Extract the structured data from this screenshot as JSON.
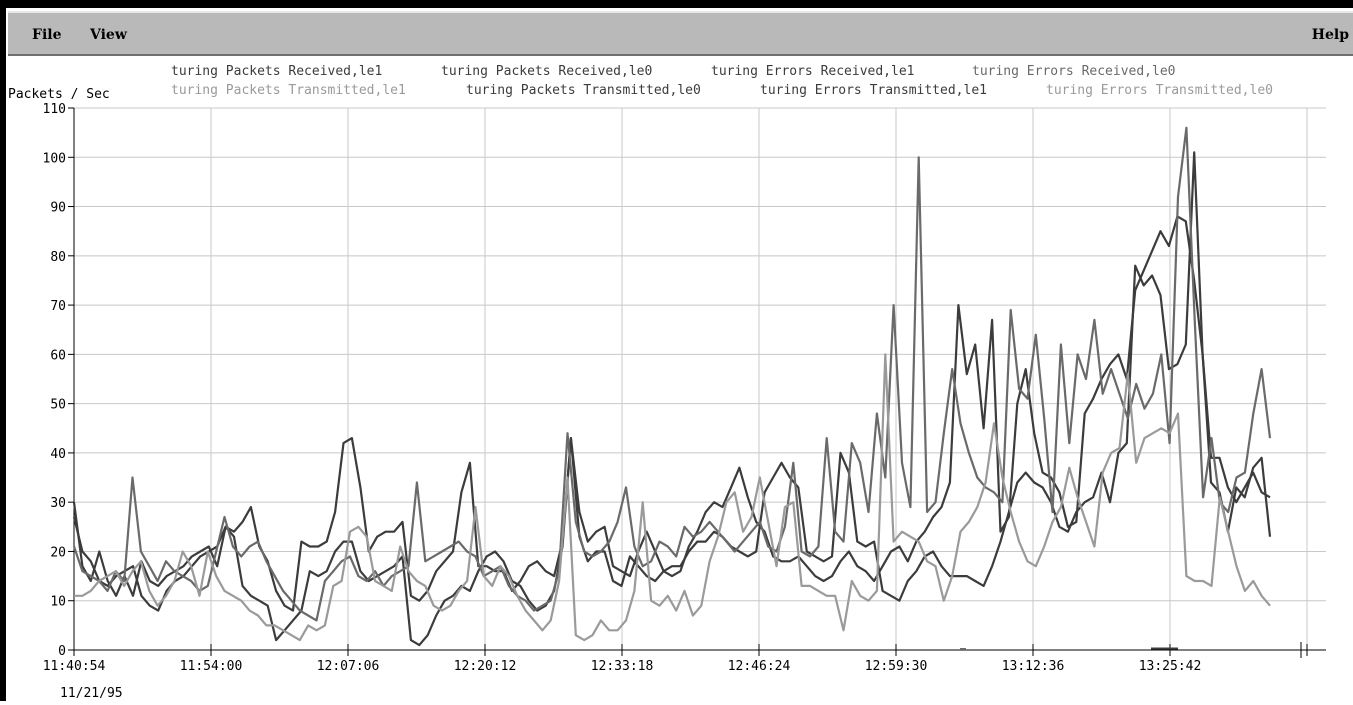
{
  "menu": {
    "file": "File",
    "view": "View",
    "help": "Help"
  },
  "chart_data": {
    "type": "line",
    "ylabel": "Packets / Sec",
    "ylim": [
      0,
      110
    ],
    "yticks": [
      0,
      10,
      20,
      30,
      40,
      50,
      60,
      70,
      80,
      90,
      100,
      110
    ],
    "xticks": [
      "11:40:54",
      "11:54:00",
      "12:07:06",
      "12:20:12",
      "12:33:18",
      "12:46:24",
      "12:59:30",
      "13:12:36",
      "13:25:42"
    ],
    "date_label": "11/21/95",
    "grid": true,
    "legend_position": "top",
    "colors": {
      "dark": "#3c3c3c",
      "mid": "#6a6a6a",
      "light": "#9a9a9a",
      "lighter": "#b0b0b0"
    },
    "legend": [
      {
        "name": "turing Packets Received,le1",
        "color": "#3c3c3c"
      },
      {
        "name": "turing Packets Received,le0",
        "color": "#3c3c3c"
      },
      {
        "name": "turing Errors Received,le1",
        "color": "#3c3c3c"
      },
      {
        "name": "turing Errors Received,le0",
        "color": "#6a6a6a"
      },
      {
        "name": "turing Packets Transmitted,le1",
        "color": "#9a9a9a"
      },
      {
        "name": "turing Packets Transmitted,le0",
        "color": "#3c3c3c"
      },
      {
        "name": "turing Errors Transmitted,le1",
        "color": "#3c3c3c"
      },
      {
        "name": "turing Errors Transmitted,le0",
        "color": "#9a9a9a"
      }
    ],
    "series": [
      {
        "color": "#3c3c3c",
        "values": [
          30,
          17,
          14,
          20,
          14,
          11,
          15,
          11,
          18,
          14,
          13,
          15,
          16,
          17,
          19,
          20,
          21,
          17,
          25,
          24,
          26,
          29,
          21,
          18,
          12,
          9,
          8,
          22,
          21,
          21,
          22,
          28,
          42,
          43,
          33,
          20,
          23,
          24,
          24,
          26,
          11,
          10,
          12,
          16,
          18,
          20,
          32,
          38,
          17,
          17,
          16,
          16,
          12,
          14,
          17,
          18,
          16,
          15,
          22,
          43,
          28,
          22,
          24,
          25,
          17,
          16,
          15,
          20,
          24,
          20,
          16,
          15,
          16,
          21,
          24,
          28,
          30,
          29,
          33,
          37,
          31,
          26,
          24,
          19,
          18,
          18,
          19,
          17,
          15,
          14,
          15,
          18,
          20,
          17,
          16,
          14,
          17,
          20,
          21,
          18,
          22,
          24,
          27,
          29,
          34,
          70,
          56,
          62,
          45,
          67,
          24,
          27,
          50,
          57,
          44,
          36,
          35,
          32,
          25,
          26,
          48,
          51,
          55,
          58,
          60,
          55,
          73,
          77,
          81,
          85,
          82,
          88,
          87,
          75,
          60,
          34,
          32,
          24,
          33,
          31,
          37,
          39,
          23
        ]
      },
      {
        "color": "#3c3c3c",
        "values": [
          27,
          20,
          18,
          14,
          13,
          15,
          16,
          17,
          11,
          9,
          8,
          12,
          14,
          15,
          17,
          19,
          20,
          21,
          25,
          23,
          13,
          11,
          10,
          9,
          2,
          4,
          6,
          8,
          16,
          15,
          16,
          20,
          22,
          22,
          16,
          14,
          15,
          16,
          17,
          19,
          2,
          1,
          3,
          7,
          10,
          11,
          13,
          12,
          16,
          19,
          20,
          18,
          14,
          13,
          10,
          8,
          9,
          12,
          21,
          43,
          23,
          18,
          20,
          20,
          14,
          13,
          19,
          17,
          15,
          14,
          16,
          17,
          17,
          20,
          22,
          22,
          24,
          23,
          21,
          20,
          19,
          20,
          32,
          35,
          38,
          35,
          33,
          20,
          19,
          18,
          19,
          40,
          36,
          22,
          21,
          22,
          12,
          11,
          10,
          14,
          16,
          19,
          20,
          17,
          15,
          15,
          15,
          14,
          13,
          17,
          22,
          28,
          34,
          36,
          34,
          33,
          30,
          25,
          24,
          28,
          30,
          31,
          36,
          30,
          40,
          42,
          78,
          74,
          76,
          72,
          57,
          58,
          62,
          101,
          60,
          39,
          39,
          33,
          30,
          33,
          36,
          32,
          31
        ]
      },
      {
        "color": "#6a6a6a",
        "values": [
          21,
          16,
          15,
          14,
          12,
          16,
          14,
          35,
          20,
          17,
          14,
          18,
          16,
          15,
          14,
          12,
          13,
          20,
          27,
          21,
          19,
          21,
          22,
          18,
          15,
          12,
          10,
          8,
          7,
          6,
          14,
          16,
          18,
          19,
          15,
          14,
          16,
          13,
          15,
          16,
          17,
          34,
          18,
          19,
          20,
          21,
          22,
          20,
          19,
          15,
          16,
          17,
          13,
          11,
          10,
          8,
          9,
          10,
          16,
          44,
          26,
          20,
          19,
          20,
          22,
          26,
          33,
          21,
          17,
          18,
          22,
          21,
          19,
          25,
          23,
          24,
          26,
          24,
          22,
          20,
          22,
          24,
          26,
          21,
          20,
          25,
          38,
          20,
          19,
          21,
          43,
          24,
          22,
          42,
          38,
          28,
          48,
          35,
          70,
          38,
          29,
          100,
          28,
          30,
          44,
          57,
          46,
          40,
          35,
          33,
          32,
          30,
          69,
          53,
          51,
          64,
          47,
          28,
          62,
          42,
          60,
          55,
          67,
          52,
          57,
          52,
          47,
          54,
          49,
          52,
          60,
          42,
          92,
          106,
          67,
          31,
          43,
          30,
          28,
          35,
          36,
          48,
          57,
          43
        ]
      },
      {
        "color": "#9a9a9a",
        "values": [
          11,
          11,
          12,
          14,
          15,
          16,
          13,
          16,
          18,
          12,
          9,
          11,
          14,
          20,
          17,
          11,
          20,
          15,
          12,
          11,
          10,
          8,
          7,
          5,
          5,
          4,
          3,
          2,
          5,
          4,
          5,
          13,
          14,
          24,
          25,
          23,
          14,
          13,
          12,
          21,
          16,
          14,
          13,
          9,
          8,
          9,
          12,
          14,
          29,
          15,
          13,
          17,
          15,
          11,
          8,
          6,
          4,
          6,
          14,
          35,
          3,
          2,
          3,
          6,
          4,
          4,
          6,
          12,
          30,
          10,
          9,
          11,
          8,
          12,
          7,
          9,
          18,
          23,
          30,
          32,
          24,
          27,
          35,
          26,
          17,
          29,
          30,
          13,
          13,
          12,
          11,
          11,
          4,
          14,
          11,
          10,
          12,
          60,
          22,
          24,
          23,
          22,
          18,
          17,
          10,
          15,
          24,
          26,
          29,
          34,
          46,
          35,
          28,
          22,
          18,
          17,
          21,
          26,
          29,
          37,
          31,
          26,
          21,
          36,
          40,
          41,
          56,
          38,
          43,
          44,
          45,
          44,
          48,
          15,
          14,
          14,
          13,
          31,
          24,
          17,
          12,
          14,
          11,
          9
        ]
      }
    ]
  }
}
